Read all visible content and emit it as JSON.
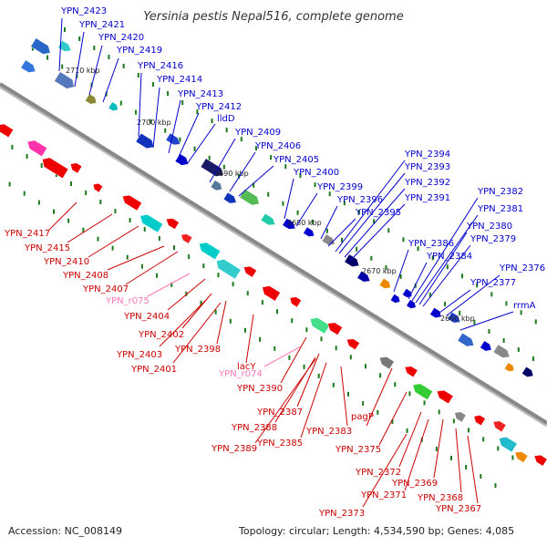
{
  "title": "Yersinia pestis Nepal516, complete genome",
  "footer": {
    "accession": "Accession: NC_008149",
    "summary": "Topology: circular; Length: 4,534,590 bp; Genes: 4,085"
  },
  "colors": {
    "backbone": "#888888",
    "forward_label": "#0000cc",
    "reverse_label": "#cc0000",
    "rna_label": "#ff77bb",
    "tick": "#1b7a1b"
  },
  "scale_labels": [
    "2710 kbp",
    "2700 kbp",
    "2690 kbp",
    "2680 kbp",
    "2670 kbp",
    "2660 kbp"
  ],
  "forward_labels": [
    "YPN_2423",
    "YPN_2421",
    "YPN_2420",
    "YPN_2419",
    "YPN_2416",
    "YPN_2414",
    "YPN_2413",
    "YPN_2412",
    "lldD",
    "YPN_2409",
    "YPN_2406",
    "YPN_2405",
    "YPN_2400",
    "YPN_2399",
    "YPN_2396",
    "YPN_2395",
    "YPN_2394",
    "YPN_2393",
    "YPN_2392",
    "YPN_2391",
    "YPN_2386",
    "YPN_2384",
    "YPN_2382",
    "YPN_2381",
    "YPN_2380",
    "YPN_2379",
    "YPN_2377",
    "YPN_2376",
    "rrmA"
  ],
  "reverse_labels": [
    "YPN_2417",
    "YPN_2415",
    "YPN_2410",
    "YPN_2408",
    "YPN_2407",
    "YPN_2404",
    "YPN_2402",
    "YPN_2403",
    "YPN_2398",
    "YPN_2401",
    "lacY",
    "YPN_2390",
    "YPN_2387",
    "YPN_2388",
    "YPN_2389",
    "YPN_2385",
    "YPN_2383",
    "pagP",
    "YPN_2375",
    "YPN_2372",
    "YPN_2369",
    "YPN_2371",
    "YPN_2368",
    "YPN_2373",
    "YPN_2367"
  ],
  "rna_labels": [
    "YPN_r075",
    "YPN_r074"
  ]
}
